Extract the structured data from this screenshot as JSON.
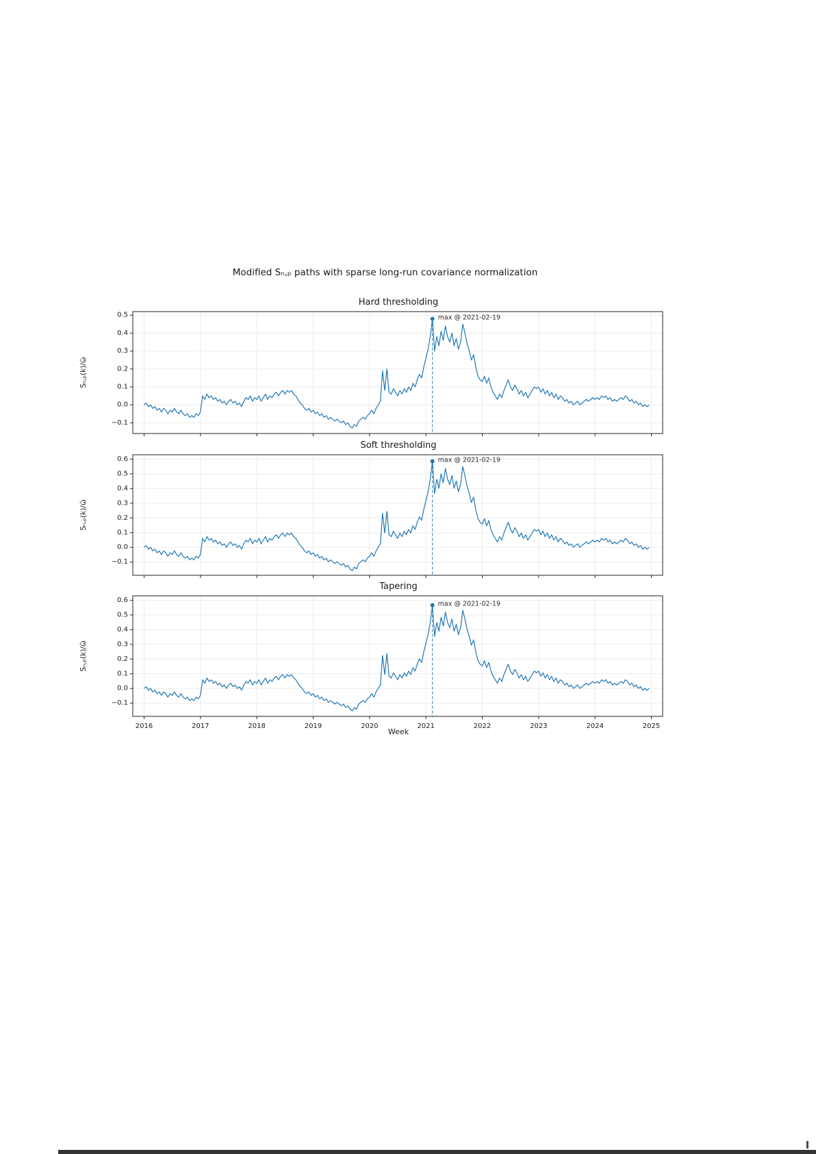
{
  "figure": {
    "suptitle": "Modified Sₙ,ₚ paths with sparse long-run covariance normalization",
    "xlabel": "Week"
  },
  "chart_shared": {
    "x_start": 2016.0,
    "x_step_years": 0.03846153846,
    "xlim": [
      2015.8,
      2025.2
    ],
    "x_ticks": [
      2016,
      2017,
      2018,
      2019,
      2020,
      2021,
      2022,
      2023,
      2024,
      2025
    ],
    "series_color": "#1f77b4",
    "annotation_label": "max @ 2021-02-19",
    "max_date": "2021-02-19",
    "max_index": 133,
    "base_values": [
      0.0,
      0.01,
      -0.01,
      0.0,
      -0.02,
      -0.01,
      -0.03,
      -0.02,
      -0.04,
      -0.02,
      -0.03,
      -0.05,
      -0.03,
      -0.04,
      -0.02,
      -0.04,
      -0.05,
      -0.03,
      -0.05,
      -0.06,
      -0.05,
      -0.07,
      -0.06,
      -0.07,
      -0.05,
      -0.06,
      -0.04,
      0.05,
      0.03,
      0.06,
      0.04,
      0.05,
      0.03,
      0.04,
      0.02,
      0.03,
      0.01,
      0.02,
      0.0,
      0.02,
      0.03,
      0.01,
      0.02,
      0.0,
      0.01,
      -0.01,
      0.02,
      0.04,
      0.03,
      0.05,
      0.02,
      0.04,
      0.03,
      0.05,
      0.02,
      0.04,
      0.06,
      0.03,
      0.05,
      0.04,
      0.06,
      0.07,
      0.05,
      0.07,
      0.08,
      0.06,
      0.08,
      0.07,
      0.08,
      0.06,
      0.05,
      0.03,
      0.01,
      0.0,
      -0.02,
      -0.03,
      -0.02,
      -0.04,
      -0.03,
      -0.05,
      -0.04,
      -0.06,
      -0.05,
      -0.07,
      -0.06,
      -0.08,
      -0.07,
      -0.08,
      -0.09,
      -0.08,
      -0.09,
      -0.1,
      -0.09,
      -0.11,
      -0.1,
      -0.12,
      -0.13,
      -0.11,
      -0.12,
      -0.09,
      -0.08,
      -0.07,
      -0.08,
      -0.06,
      -0.05,
      -0.03,
      -0.05,
      -0.02,
      0.0,
      0.02,
      0.19,
      0.08,
      0.2,
      0.07,
      0.06,
      0.09,
      0.07,
      0.05,
      0.08,
      0.06,
      0.09,
      0.07,
      0.1,
      0.08,
      0.12,
      0.1,
      0.14,
      0.17,
      0.15,
      0.21,
      0.26,
      0.31,
      0.38,
      0.48,
      0.3,
      0.38,
      0.33,
      0.41,
      0.36,
      0.44,
      0.38,
      0.35,
      0.4,
      0.33,
      0.37,
      0.31,
      0.35,
      0.45,
      0.4,
      0.34,
      0.3,
      0.25,
      0.28,
      0.21,
      0.16,
      0.14,
      0.13,
      0.16,
      0.12,
      0.15,
      0.1,
      0.07,
      0.05,
      0.03,
      0.06,
      0.04,
      0.08,
      0.11,
      0.14,
      0.1,
      0.08,
      0.11,
      0.09,
      0.06,
      0.08,
      0.05,
      0.07,
      0.04,
      0.06,
      0.08,
      0.1,
      0.09,
      0.1,
      0.07,
      0.09,
      0.06,
      0.08,
      0.05,
      0.07,
      0.04,
      0.06,
      0.03,
      0.05,
      0.04,
      0.02,
      0.03,
      0.01,
      0.02,
      0.0,
      0.01,
      0.02,
      0.0,
      0.01,
      0.02,
      0.03,
      0.02,
      0.03,
      0.04,
      0.03,
      0.04,
      0.03,
      0.05,
      0.04,
      0.05,
      0.03,
      0.04,
      0.02,
      0.03,
      0.02,
      0.03,
      0.04,
      0.03,
      0.05,
      0.04,
      0.02,
      0.03,
      0.01,
      0.02,
      0.0,
      0.01,
      -0.01,
      0.0,
      -0.01,
      0.0
    ]
  },
  "chart_data": [
    {
      "type": "line",
      "title": "Hard thresholding",
      "ylabel": "Sₙ,ₚ(k)/ω̂",
      "scale": 1.0,
      "max_value": 0.48,
      "ylim": [
        -0.16,
        0.52
      ],
      "y_ticks": [
        0.5,
        0.4,
        0.3,
        0.2,
        0.1,
        0.0,
        -0.1
      ],
      "annotation": "max @ 2021-02-19"
    },
    {
      "type": "line",
      "title": "Soft thresholding",
      "ylabel": "Sₙ,ₚ(k)/ω̂",
      "scale": 1.22,
      "max_value": 0.59,
      "ylim": [
        -0.19,
        0.63
      ],
      "y_ticks": [
        0.6,
        0.5,
        0.4,
        0.3,
        0.2,
        0.1,
        0.0,
        -0.1
      ],
      "annotation": "max @ 2021-02-19"
    },
    {
      "type": "line",
      "title": "Tapering",
      "ylabel": "Sₙ,ₚ(k)/ω̂",
      "scale": 1.18,
      "max_value": 0.57,
      "ylim": [
        -0.19,
        0.63
      ],
      "y_ticks": [
        0.6,
        0.5,
        0.4,
        0.3,
        0.2,
        0.1,
        0.0,
        -0.1
      ],
      "annotation": "max @ 2021-02-19"
    }
  ]
}
